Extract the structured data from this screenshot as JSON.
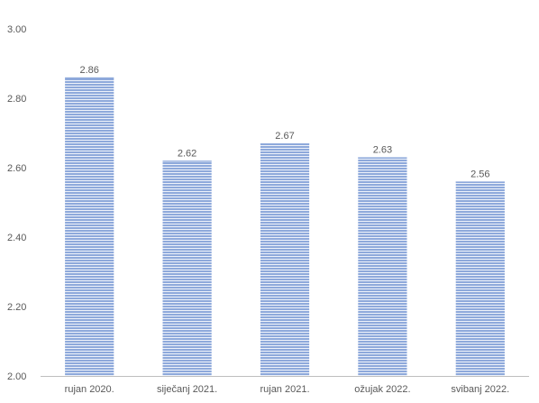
{
  "chart_data": {
    "type": "bar",
    "categories": [
      "rujan 2020.",
      "siječanj 2021.",
      "rujan 2021.",
      "ožujak 2022.",
      "svibanj 2022."
    ],
    "values": [
      2.86,
      2.62,
      2.67,
      2.63,
      2.56
    ],
    "data_labels": [
      "2.86",
      "2.62",
      "2.67",
      "2.63",
      "2.56"
    ],
    "ylim": [
      2.0,
      3.0
    ],
    "yticks": [
      2.0,
      2.2,
      2.4,
      2.6,
      2.8,
      3.0
    ],
    "ytick_labels": [
      "2.00",
      "2.20",
      "2.40",
      "2.60",
      "2.80",
      "3.00"
    ],
    "grid": false,
    "legend": "none",
    "bar_color": "#8EA9DB",
    "bar_stripe_color": "#FFFFFF",
    "axis_color": "#BFBFBF",
    "text_color": "#595959"
  }
}
